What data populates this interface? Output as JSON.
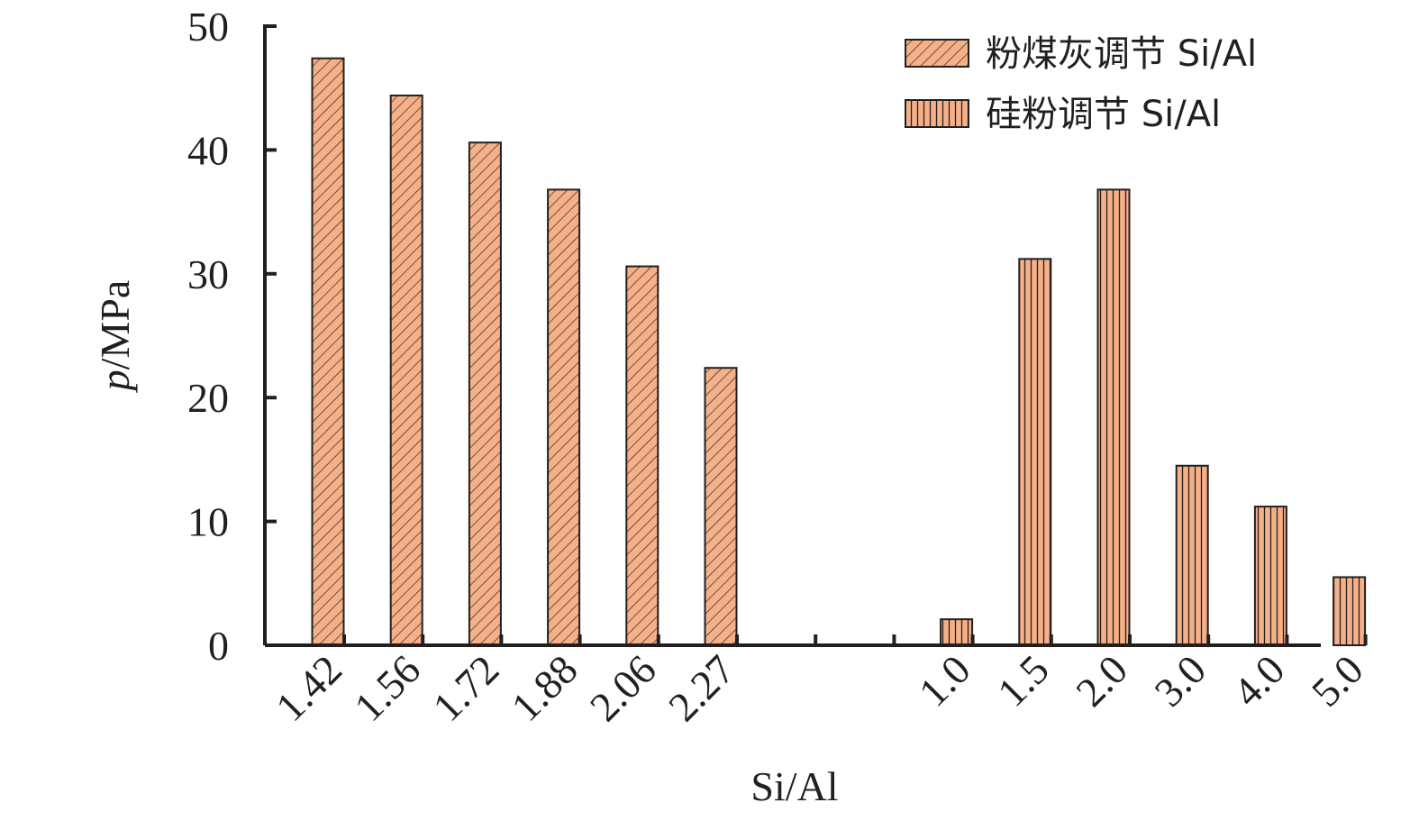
{
  "chart_data": {
    "type": "bar",
    "xlabel": "Si/Al",
    "ylabel_italic": "p",
    "ylabel_rest": "/MPa",
    "ylim": [
      0,
      50
    ],
    "yticks": [
      0,
      10,
      20,
      30,
      40,
      50
    ],
    "bar_color": "#f5b088",
    "edge_color": "#231f20",
    "series": [
      {
        "name": "粉煤灰调节 Si/Al",
        "pattern": "diagonal",
        "categories": [
          "1.42",
          "1.56",
          "1.72",
          "1.88",
          "2.06",
          "2.27"
        ],
        "values": [
          47.4,
          44.4,
          40.6,
          36.8,
          30.6,
          22.4
        ],
        "slots": [
          0,
          1,
          2,
          3,
          4,
          5
        ]
      },
      {
        "name": "硅粉调节 Si/Al",
        "pattern": "vertical",
        "categories": [
          "1.0",
          "1.5",
          "2.0",
          "3.0",
          "4.0",
          "5.0"
        ],
        "values": [
          2.1,
          31.2,
          36.8,
          14.5,
          11.2,
          5.5
        ],
        "slots": [
          8,
          9,
          10,
          11,
          12,
          13
        ]
      }
    ]
  }
}
